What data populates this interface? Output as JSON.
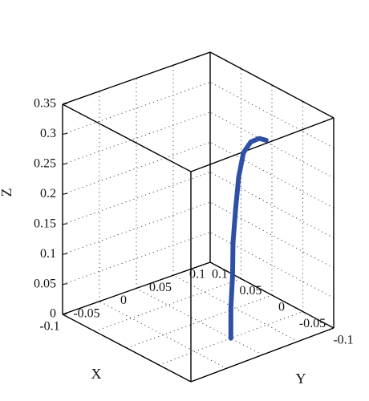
{
  "chart_data": {
    "type": "line3d",
    "title": "",
    "xlabel": "X",
    "ylabel": "Y",
    "zlabel": "Z",
    "xlim": [
      -0.1,
      0.1
    ],
    "ylim": [
      -0.1,
      0.1
    ],
    "zlim": [
      0,
      0.35
    ],
    "x_ticks": [
      "-0.1",
      "-0.05",
      "0",
      "0.05",
      "0.1"
    ],
    "y_ticks": [
      "-0.1",
      "-0.05",
      "0",
      "0.05",
      "0.1"
    ],
    "z_ticks": [
      "0",
      "0.05",
      "0.1",
      "0.15",
      "0.2",
      "0.25",
      "0.3",
      "0.35"
    ],
    "grid": true,
    "box": true,
    "series": [
      {
        "color": "#2f4fa6",
        "points": [
          {
            "x": 0.0,
            "y": -0.05,
            "z": 0.0
          },
          {
            "x": 0.0,
            "y": -0.05,
            "z": 0.05
          },
          {
            "x": 0.005,
            "y": -0.047,
            "z": 0.1
          },
          {
            "x": 0.01,
            "y": -0.042,
            "z": 0.15
          },
          {
            "x": 0.018,
            "y": -0.037,
            "z": 0.2
          },
          {
            "x": 0.024,
            "y": -0.035,
            "z": 0.25
          },
          {
            "x": 0.028,
            "y": -0.038,
            "z": 0.29
          },
          {
            "x": 0.032,
            "y": -0.045,
            "z": 0.31
          },
          {
            "x": 0.035,
            "y": -0.055,
            "z": 0.32
          },
          {
            "x": 0.036,
            "y": -0.065,
            "z": 0.322
          }
        ]
      }
    ]
  }
}
